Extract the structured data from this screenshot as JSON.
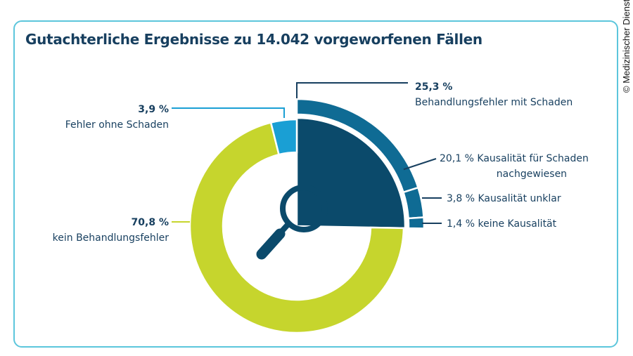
{
  "title": "Gutachterliche Ergebnisse zu 14.042 vorgeworfenen Fällen",
  "credit": "© Medizinischer Dienst",
  "colors": {
    "dark": "#0b4a6b",
    "mid": "#0f6b94",
    "light": "#1a9fd4",
    "green": "#c6d52d",
    "border": "#5cc6dc",
    "text": "#173f5f"
  },
  "icon": "magnifier-icon",
  "chart_data": {
    "type": "pie",
    "variant": "donut with breakdown ring",
    "slices": [
      {
        "label": "Behandlungsfehler mit Schaden",
        "value": 25.3,
        "value_label": "25,3 %",
        "color": "#0b4a6b"
      },
      {
        "label": "kein Behandlungsfehler",
        "value": 70.8,
        "value_label": "70,8 %",
        "color": "#c6d52d"
      },
      {
        "label": "Fehler ohne Schaden",
        "value": 3.9,
        "value_label": "3,9 %",
        "color": "#1a9fd4"
      }
    ],
    "breakdown": [
      {
        "label": "Kausalität für Schaden nachgewiesen",
        "value": 20.1,
        "value_label": "20,1 %",
        "color": "#0f6b94"
      },
      {
        "label": "Kausalität unklar",
        "value": 3.8,
        "value_label": "3,8 %",
        "color": "#0f6b94"
      },
      {
        "label": "keine Kausalität",
        "value": 1.4,
        "value_label": "1,4 %",
        "color": "#0f6b94"
      }
    ],
    "breakdown_label_lines": {
      "line1": "Kausalität für Schaden",
      "line2": "nachgewiesen"
    }
  }
}
